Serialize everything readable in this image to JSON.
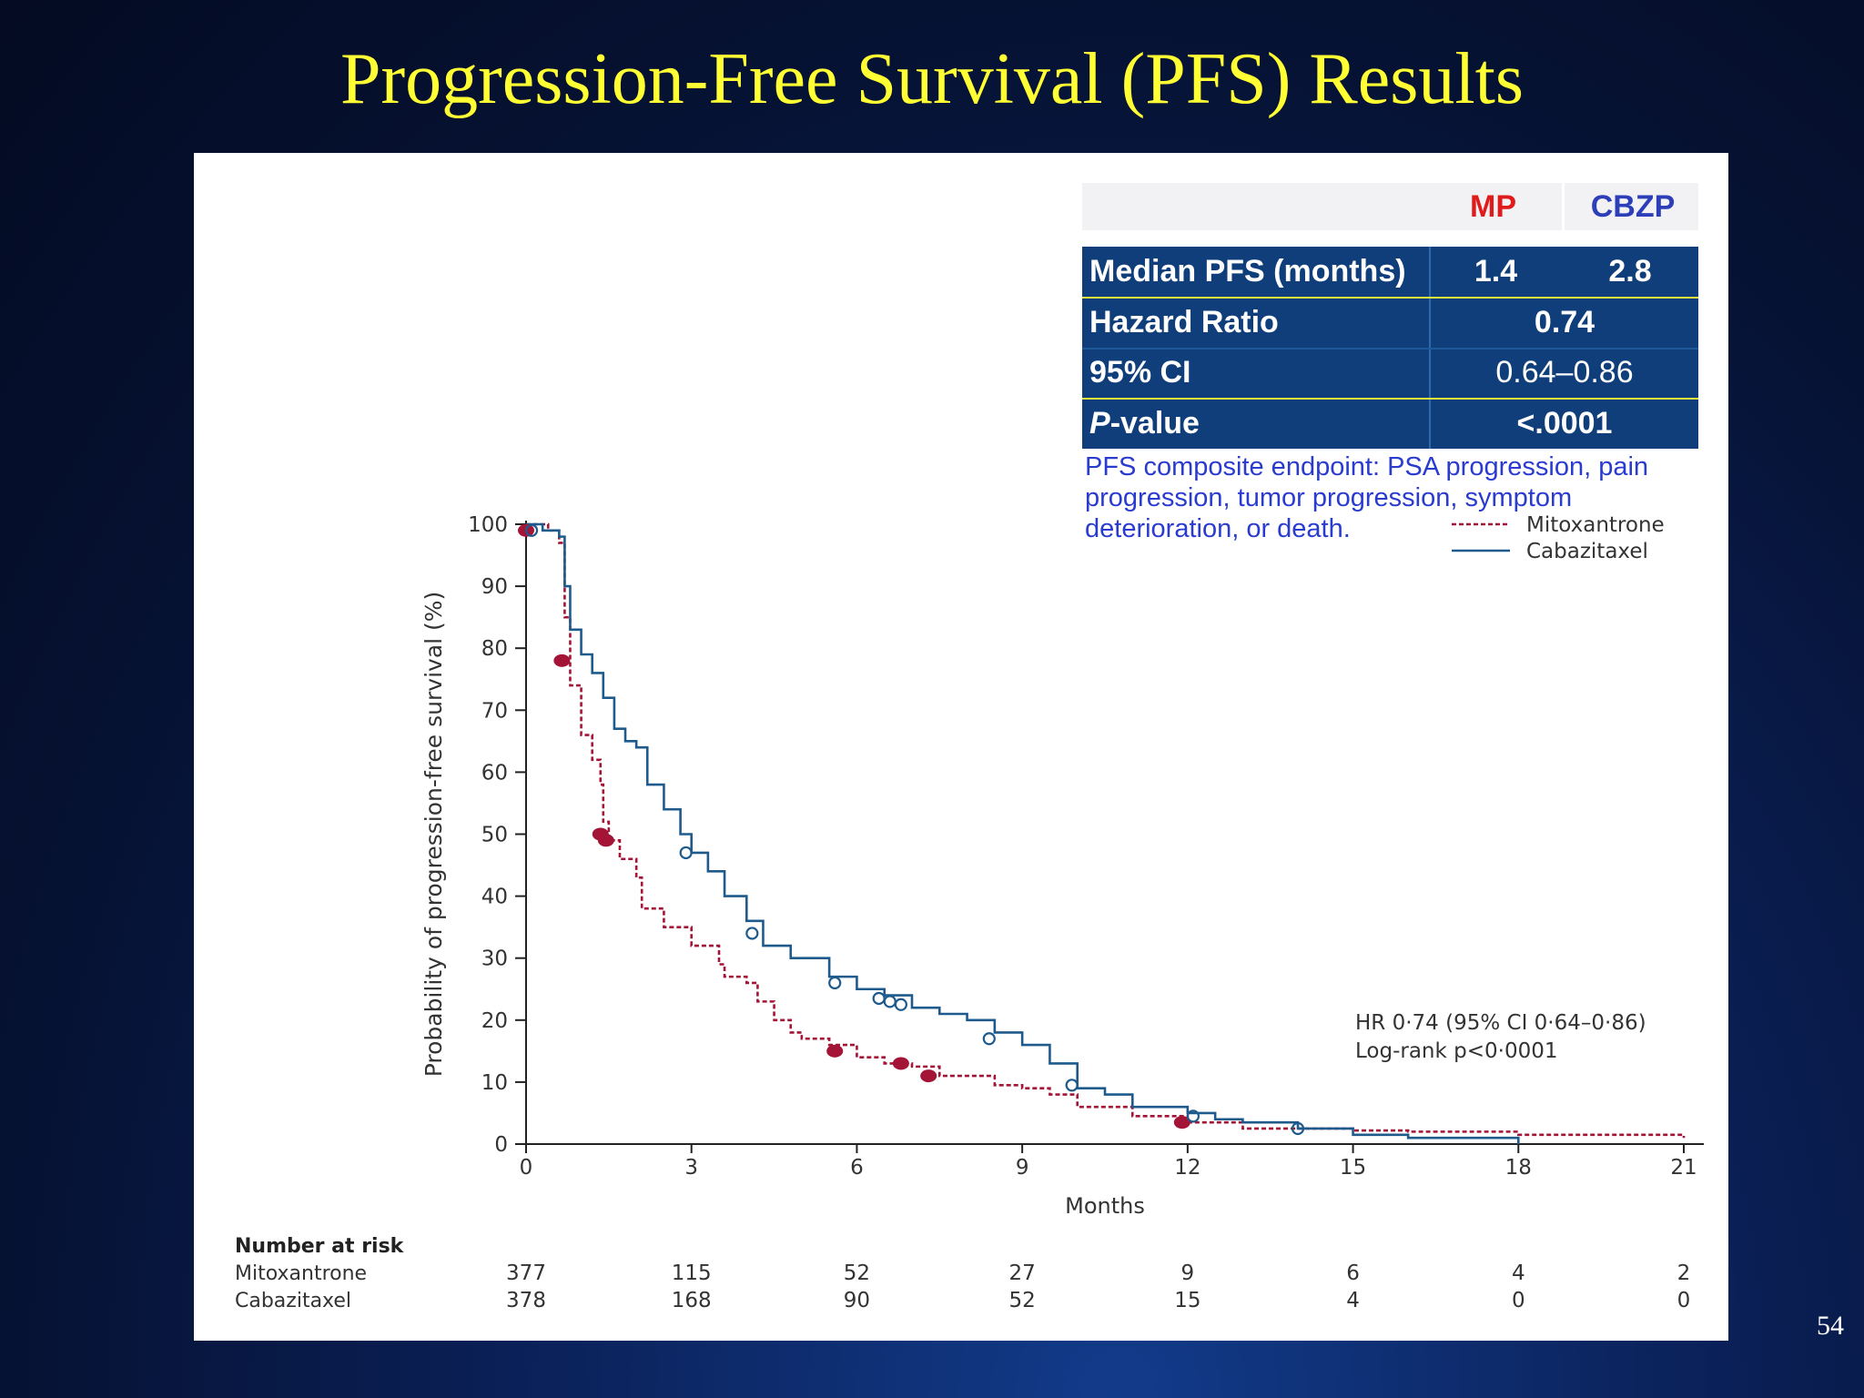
{
  "slide": {
    "title": "Progression-Free Survival (PFS) Results",
    "page_number": "54"
  },
  "summary_table": {
    "col_mp": "MP",
    "col_cbzp": "CBZP",
    "rows": [
      {
        "label": "Median PFS (months)",
        "mp": "1.4",
        "cbzp": "2.8"
      },
      {
        "label": "Hazard Ratio",
        "value": "0.74"
      },
      {
        "label": "95% CI",
        "value": "0.64–0.86"
      },
      {
        "label_italic": "P",
        "label_rest": "-value",
        "value": "<.0001"
      }
    ],
    "colors": {
      "mp": "#e01b1b",
      "cbzp": "#2c3fb8",
      "table_bg": "#0f3e7a"
    }
  },
  "note": "PFS composite endpoint: PSA progression, pain progression, tumor progression, symptom deterioration, or death.",
  "chart_data": {
    "type": "line",
    "xlabel": "Months",
    "ylabel": "Probability of progression-free survival (%)",
    "xlim": [
      0,
      21
    ],
    "ylim": [
      0,
      100
    ],
    "x_ticks": [
      0,
      3,
      6,
      9,
      12,
      15,
      18,
      21
    ],
    "y_ticks": [
      0,
      10,
      20,
      30,
      40,
      50,
      60,
      70,
      80,
      90,
      100
    ],
    "annotation_lines": [
      "HR 0·74 (95% CI 0·64–0·86)",
      "Log-rank p<0·0001"
    ],
    "legend_position": "top-right",
    "series": [
      {
        "name": "Mitoxantrone",
        "color": "#a31436",
        "style": "dashed",
        "points": [
          [
            0,
            100
          ],
          [
            0.4,
            99
          ],
          [
            0.6,
            97
          ],
          [
            0.7,
            85
          ],
          [
            0.8,
            74
          ],
          [
            1.0,
            66
          ],
          [
            1.2,
            62
          ],
          [
            1.35,
            58
          ],
          [
            1.4,
            52
          ],
          [
            1.5,
            49
          ],
          [
            1.7,
            46
          ],
          [
            2.0,
            43
          ],
          [
            2.1,
            38
          ],
          [
            2.5,
            35
          ],
          [
            3.0,
            32
          ],
          [
            3.5,
            29
          ],
          [
            3.6,
            27
          ],
          [
            4.0,
            26
          ],
          [
            4.2,
            23
          ],
          [
            4.5,
            20
          ],
          [
            4.8,
            18
          ],
          [
            5.0,
            17
          ],
          [
            5.5,
            16
          ],
          [
            6.0,
            14
          ],
          [
            6.5,
            13
          ],
          [
            7.0,
            12.5
          ],
          [
            7.5,
            11
          ],
          [
            8.0,
            11
          ],
          [
            8.5,
            9.5
          ],
          [
            9.0,
            9
          ],
          [
            9.5,
            8
          ],
          [
            10,
            6
          ],
          [
            11,
            4.5
          ],
          [
            12,
            3.5
          ],
          [
            13,
            2.5
          ],
          [
            14,
            2.5
          ],
          [
            15,
            2.2
          ],
          [
            16,
            2
          ],
          [
            18,
            1.5
          ],
          [
            21,
            1
          ]
        ],
        "censor_marks": [
          [
            0,
            99
          ],
          [
            0.65,
            78
          ],
          [
            1.35,
            50
          ],
          [
            1.45,
            49
          ],
          [
            5.6,
            15
          ],
          [
            6.8,
            13
          ],
          [
            7.3,
            11
          ],
          [
            11.9,
            3.5
          ]
        ]
      },
      {
        "name": "Cabazitaxel",
        "color": "#1f5a8c",
        "style": "solid",
        "points": [
          [
            0,
            100
          ],
          [
            0.3,
            99
          ],
          [
            0.6,
            98
          ],
          [
            0.7,
            90
          ],
          [
            0.8,
            83
          ],
          [
            1.0,
            79
          ],
          [
            1.2,
            76
          ],
          [
            1.4,
            72
          ],
          [
            1.6,
            67
          ],
          [
            1.8,
            65
          ],
          [
            2.0,
            64
          ],
          [
            2.2,
            58
          ],
          [
            2.5,
            54
          ],
          [
            2.8,
            50
          ],
          [
            3.0,
            47
          ],
          [
            3.3,
            44
          ],
          [
            3.6,
            40
          ],
          [
            4.0,
            36
          ],
          [
            4.3,
            32
          ],
          [
            4.8,
            30
          ],
          [
            5.5,
            27
          ],
          [
            6.0,
            25
          ],
          [
            6.5,
            24
          ],
          [
            7.0,
            22
          ],
          [
            7.5,
            21
          ],
          [
            8.0,
            20
          ],
          [
            8.5,
            18
          ],
          [
            9.0,
            16
          ],
          [
            9.5,
            13
          ],
          [
            10,
            9
          ],
          [
            10.5,
            8
          ],
          [
            11,
            6
          ],
          [
            12,
            5
          ],
          [
            12.5,
            4
          ],
          [
            13,
            3.5
          ],
          [
            14,
            2.5
          ],
          [
            15,
            1.5
          ],
          [
            16,
            1
          ],
          [
            18,
            0.5
          ],
          [
            18,
            0
          ]
        ],
        "censor_marks": [
          [
            0.1,
            99
          ],
          [
            2.9,
            47
          ],
          [
            4.1,
            34
          ],
          [
            5.6,
            26
          ],
          [
            6.4,
            23.5
          ],
          [
            6.6,
            23
          ],
          [
            6.8,
            22.5
          ],
          [
            8.4,
            17
          ],
          [
            9.9,
            9.5
          ],
          [
            12.1,
            4.5
          ],
          [
            14,
            2.5
          ]
        ]
      }
    ]
  },
  "number_at_risk": {
    "header": "Number at risk",
    "rows": [
      {
        "label": "Mitoxantrone",
        "values": [
          "377",
          "115",
          "52",
          "27",
          "9",
          "6",
          "4",
          "2"
        ]
      },
      {
        "label": "Cabazitaxel",
        "values": [
          "378",
          "168",
          "90",
          "52",
          "15",
          "4",
          "0",
          "0"
        ]
      }
    ]
  }
}
